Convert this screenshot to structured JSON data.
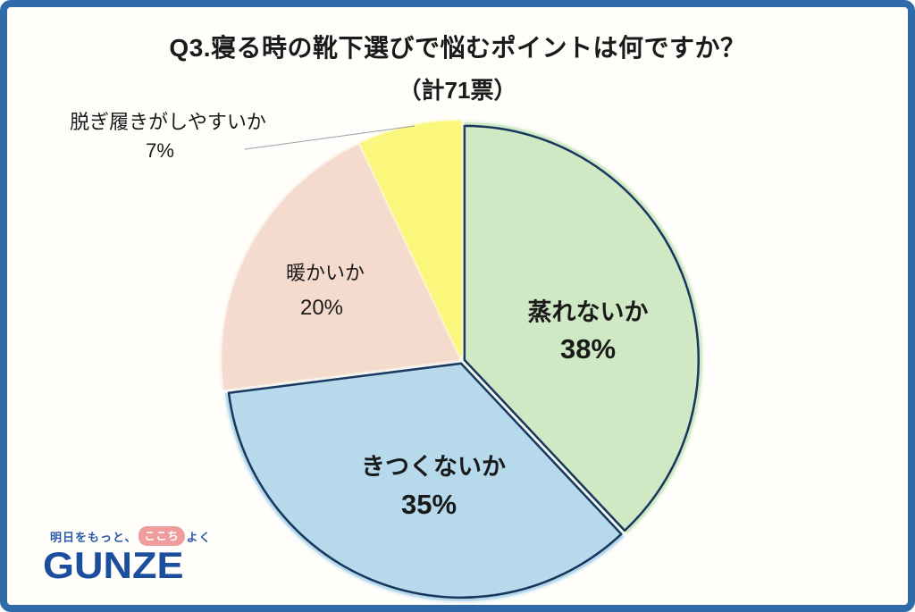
{
  "frame": {
    "border_color": "#2f6ba9",
    "background": "#fffefb"
  },
  "header": {
    "title": "Q3.寝る時の靴下選びで悩むポイントは何ですか？",
    "subtitle": "（計71票）"
  },
  "chart_data": {
    "type": "pie",
    "title": "Q3.寝る時の靴下選びで悩むポイントは何ですか？",
    "total_label": "（計71票）",
    "total_votes": 71,
    "start_angle_deg": 0,
    "direction": "clockwise",
    "outline_color": "#17375d",
    "slices": [
      {
        "label": "蒸れないか",
        "value": 38,
        "pct": "38%",
        "color": "#cee9c3",
        "outlined": true
      },
      {
        "label": "きつくないか",
        "value": 35,
        "pct": "35%",
        "color": "#b6d9ec",
        "outlined": true
      },
      {
        "label": "暖かいか",
        "value": 20,
        "pct": "20%",
        "color": "#f4dbcd",
        "outlined": false
      },
      {
        "label": "脱ぎ履きがしやすいか",
        "value": 7,
        "pct": "7%",
        "color": "#fbf77d",
        "outlined": false
      }
    ]
  },
  "logo": {
    "tagline_before": "明日をもっと、",
    "tagline_highlight": "ここち",
    "tagline_after": "よく",
    "brand": "GUNZE",
    "brand_color": "#1c4e9e",
    "highlight_bg": "#ef9d9c"
  }
}
